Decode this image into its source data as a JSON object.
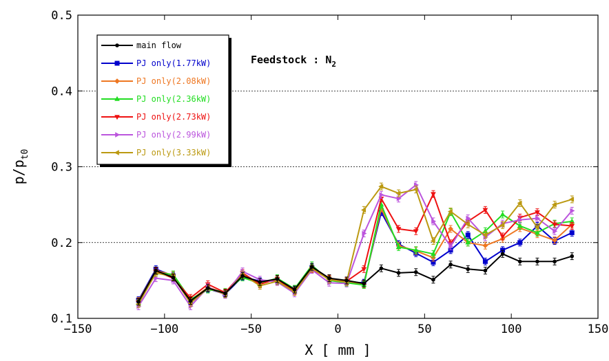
{
  "chart_data": {
    "type": "line",
    "xlabel": "X [ mm ]",
    "ylabel": "p/p",
    "ylabel_sub": "t0",
    "xlim": [
      -150,
      150
    ],
    "ylim": [
      0.1,
      0.5
    ],
    "xticks": [
      -150,
      -100,
      -50,
      0,
      50,
      100,
      150
    ],
    "xtick_labels": [
      "−150",
      "−100",
      "−50",
      "0",
      "50",
      "100",
      "150"
    ],
    "yticks": [
      0.1,
      0.2,
      0.3,
      0.4,
      0.5
    ],
    "ytick_labels": [
      "0.1",
      "0.2",
      "0.3",
      "0.4",
      "0.5"
    ],
    "grid": "horizontal dashed",
    "legend_position": "top-left",
    "annotation": {
      "text": "Feedstock : N",
      "sub": "2"
    },
    "x": [
      -115,
      -105,
      -95,
      -85,
      -75,
      -65,
      -55,
      -45,
      -35,
      -25,
      -15,
      -5,
      5,
      15,
      25,
      35,
      45,
      55,
      65,
      75,
      85,
      95,
      105,
      115,
      125,
      135
    ],
    "series": [
      {
        "name": "main flow",
        "color": "#000000",
        "marker": "circle",
        "values": [
          0.122,
          0.163,
          0.154,
          0.123,
          0.14,
          0.133,
          0.156,
          0.148,
          0.152,
          0.138,
          0.168,
          0.153,
          0.15,
          0.146,
          0.166,
          0.16,
          0.161,
          0.151,
          0.171,
          0.165,
          0.163,
          0.185,
          0.175,
          0.175,
          0.175,
          0.182
        ]
      },
      {
        "name": "PJ only(1.77kW)",
        "color": "#0000cc",
        "marker": "square",
        "values": [
          0.124,
          0.165,
          0.156,
          0.121,
          0.139,
          0.132,
          0.155,
          0.149,
          0.15,
          0.137,
          0.167,
          0.151,
          0.148,
          0.147,
          0.24,
          0.198,
          0.186,
          0.174,
          0.19,
          0.21,
          0.175,
          0.19,
          0.2,
          0.222,
          0.202,
          0.213
        ]
      },
      {
        "name": "PJ only(2.08kW)",
        "color": "#ee7722",
        "marker": "diamond",
        "values": [
          0.123,
          0.163,
          0.157,
          0.124,
          0.141,
          0.133,
          0.157,
          0.147,
          0.151,
          0.136,
          0.166,
          0.152,
          0.149,
          0.145,
          0.245,
          0.196,
          0.189,
          0.18,
          0.218,
          0.2,
          0.196,
          0.205,
          0.219,
          0.211,
          0.203,
          0.224
        ]
      },
      {
        "name": "PJ only(2.36kW)",
        "color": "#22dd22",
        "marker": "triangle-up",
        "values": [
          0.12,
          0.16,
          0.158,
          0.125,
          0.138,
          0.135,
          0.154,
          0.146,
          0.153,
          0.139,
          0.17,
          0.15,
          0.147,
          0.144,
          0.25,
          0.194,
          0.19,
          0.185,
          0.24,
          0.2,
          0.215,
          0.237,
          0.222,
          0.213,
          0.225,
          0.228
        ]
      },
      {
        "name": "PJ only(2.73kW)",
        "color": "#ee1111",
        "marker": "triangle-down",
        "values": [
          0.121,
          0.162,
          0.153,
          0.127,
          0.145,
          0.134,
          0.16,
          0.145,
          0.152,
          0.136,
          0.165,
          0.152,
          0.149,
          0.165,
          0.258,
          0.218,
          0.215,
          0.264,
          0.199,
          0.228,
          0.243,
          0.208,
          0.233,
          0.24,
          0.224,
          0.222
        ]
      },
      {
        "name": "PJ only(2.99kW)",
        "color": "#bb55dd",
        "marker": "triangle-right",
        "values": [
          0.116,
          0.153,
          0.15,
          0.116,
          0.141,
          0.131,
          0.162,
          0.151,
          0.148,
          0.133,
          0.164,
          0.147,
          0.146,
          0.212,
          0.263,
          0.258,
          0.276,
          0.228,
          0.195,
          0.232,
          0.207,
          0.225,
          0.23,
          0.232,
          0.215,
          0.242
        ]
      },
      {
        "name": "PJ only(3.33kW)",
        "color": "#bb9911",
        "marker": "triangle-left",
        "values": [
          0.119,
          0.16,
          0.155,
          0.12,
          0.14,
          0.132,
          0.158,
          0.143,
          0.149,
          0.135,
          0.166,
          0.151,
          0.148,
          0.243,
          0.274,
          0.265,
          0.27,
          0.202,
          0.241,
          0.224,
          0.21,
          0.223,
          0.252,
          0.22,
          0.25,
          0.257
        ]
      }
    ]
  }
}
